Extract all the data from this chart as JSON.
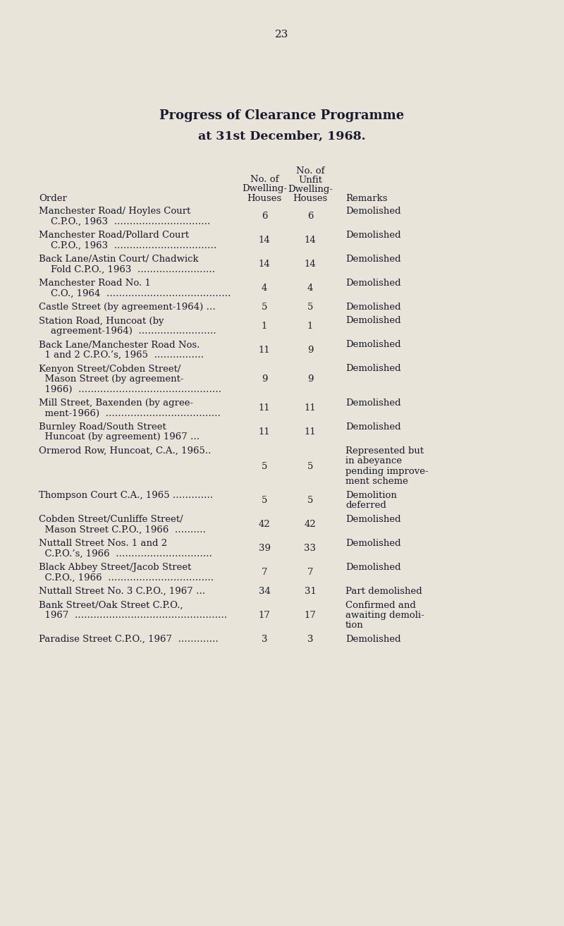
{
  "page_number": "23",
  "title_line1": "Progress of Clearance Programme",
  "title_line2": "at 31st December, 1968.",
  "bg_color": "#e8e4da",
  "text_color": "#1a1a2e",
  "rows": [
    {
      "order": [
        "Manchester Road/ Hoyles Court",
        "    C.P.O., 1963  …………………………."
      ],
      "dwelling": "6",
      "unfit": "6",
      "remarks": [
        "Demolished"
      ]
    },
    {
      "order": [
        "Manchester Road/Pollard Court",
        "    C.P.O., 1963  ……………………………"
      ],
      "dwelling": "14",
      "unfit": "14",
      "remarks": [
        "Demolished"
      ]
    },
    {
      "order": [
        "Back Lane/Astin Court/ Chadwick",
        "    Fold C.P.O., 1963  ……………………."
      ],
      "dwelling": "14",
      "unfit": "14",
      "remarks": [
        "Demolished"
      ]
    },
    {
      "order": [
        "Manchester Road No. 1",
        "    C.O., 1964  …………………………………."
      ],
      "dwelling": "4",
      "unfit": "4",
      "remarks": [
        "Demolished"
      ]
    },
    {
      "order": [
        "Castle Street (by agreement-1964) …"
      ],
      "dwelling": "5",
      "unfit": "5",
      "remarks": [
        "Demolished"
      ]
    },
    {
      "order": [
        "Station Road, Huncoat (by",
        "    agreement-1964)  ……………………."
      ],
      "dwelling": "1",
      "unfit": "1",
      "remarks": [
        "Demolished"
      ]
    },
    {
      "order": [
        "Back Lane/Manchester Road Nos.",
        "  1 and 2 C.P.O.’s, 1965  ……………."
      ],
      "dwelling": "11",
      "unfit": "9",
      "remarks": [
        "Demolished"
      ]
    },
    {
      "order": [
        "Kenyon Street/Cobden Street/",
        "  Mason Street (by agreement-",
        "  1966)  ………………………………………."
      ],
      "dwelling": "9",
      "unfit": "9",
      "remarks": [
        "Demolished"
      ]
    },
    {
      "order": [
        "Mill Street, Baxenden (by agree-",
        "  ment-1966)  ………………………………."
      ],
      "dwelling": "11",
      "unfit": "11",
      "remarks": [
        "Demolished"
      ]
    },
    {
      "order": [
        "Burnley Road/South Street",
        "  Huncoat (by agreement) 1967 …"
      ],
      "dwelling": "11",
      "unfit": "11",
      "remarks": [
        "Demolished"
      ]
    },
    {
      "order": [
        "Ormerod Row, Huncoat, C.A., 1965.."
      ],
      "dwelling": "5",
      "unfit": "5",
      "remarks": [
        "Represented but",
        "in abeyance",
        "pending improve-",
        "ment scheme"
      ]
    },
    {
      "order": [
        "Thompson Court C.A., 1965 …………."
      ],
      "dwelling": "5",
      "unfit": "5",
      "remarks": [
        "Demolition",
        "deferred"
      ]
    },
    {
      "order": [
        "Cobden Street/Cunliffe Street/",
        "  Mason Street C.P.O., 1966  ………."
      ],
      "dwelling": "42",
      "unfit": "42",
      "remarks": [
        "Demolished"
      ]
    },
    {
      "order": [
        "Nuttall Street Nos. 1 and 2",
        "  C.P.O.’s, 1966  …………………………."
      ],
      "dwelling": "39",
      "unfit": "33",
      "remarks": [
        "Demolished"
      ]
    },
    {
      "order": [
        "Black Abbey Street/Jacob Street",
        "  C.P.O., 1966  ……………………………."
      ],
      "dwelling": "7",
      "unfit": "7",
      "remarks": [
        "Demolished"
      ]
    },
    {
      "order": [
        "Nuttall Street No. 3 C.P.O., 1967 …"
      ],
      "dwelling": "34",
      "unfit": "31",
      "remarks": [
        "Part demolished"
      ]
    },
    {
      "order": [
        "Bank Street/Oak Street C.P.O.,",
        "  1967  …………………………………………."
      ],
      "dwelling": "17",
      "unfit": "17",
      "remarks": [
        "Confirmed and",
        "awaiting demoli-",
        "tion"
      ]
    },
    {
      "order": [
        "Paradise Street C.P.O., 1967  …………."
      ],
      "dwelling": "3",
      "unfit": "3",
      "remarks": [
        "Demolished"
      ]
    }
  ]
}
